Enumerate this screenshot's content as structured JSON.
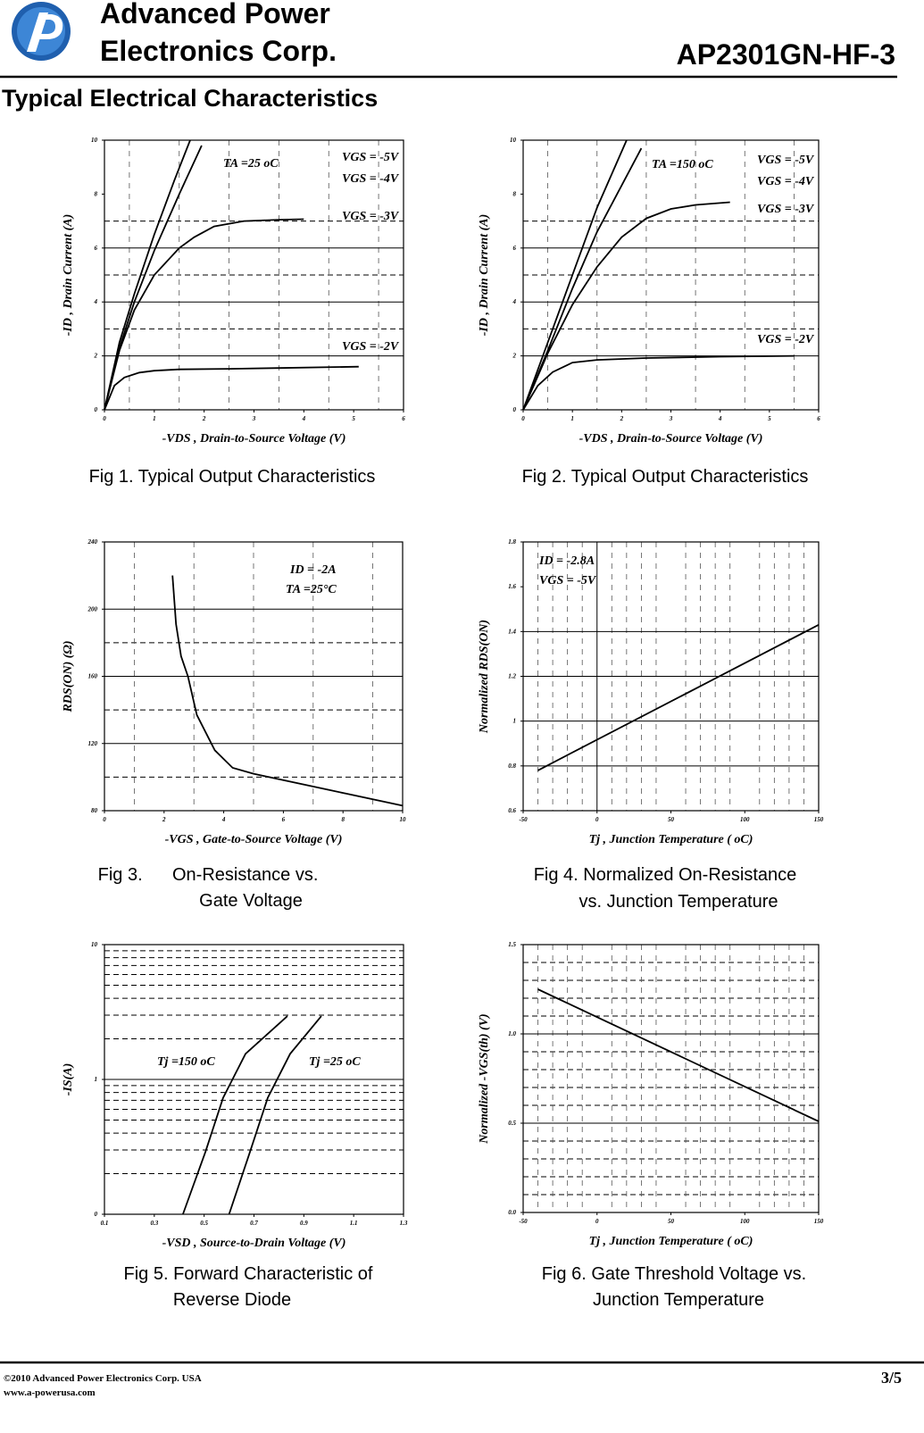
{
  "header": {
    "company": [
      "Advanced Power",
      "Electronics Corp."
    ],
    "part_number": "AP2301GN-HF-3"
  },
  "section_title": "Typical Electrical Characteristics",
  "chart_data": [
    {
      "type": "line",
      "xlabel": "-VDS , Drain-to-Source Voltage (V)",
      "ylabel": "-ID , Drain Current (A)",
      "annotations": [
        "TA =25 oC"
      ],
      "caption": [
        "Fig 1. Typical Output Characteristics"
      ],
      "xlim": [
        0,
        6
      ],
      "ylim": [
        0,
        10
      ],
      "xticks": [
        0,
        1,
        2,
        3,
        4,
        5,
        6
      ],
      "yticks": [
        0,
        2,
        4,
        6,
        8,
        10
      ],
      "grid_y_solid": [
        2,
        4,
        6
      ],
      "grid_y_dashed": [
        3,
        5,
        7
      ],
      "grid_x_dashed": [
        0.5,
        1.5,
        2.5,
        3.5,
        4.5,
        5.5
      ],
      "series": [
        {
          "name": "VGS = -5V",
          "color": "#000000",
          "x": [
            0,
            0.3,
            0.6,
            1.0,
            1.4,
            1.72
          ],
          "values": [
            0,
            2.5,
            4.3,
            6.5,
            8.5,
            10
          ]
        },
        {
          "name": "VGS = -4V",
          "color": "#000000",
          "x": [
            0,
            0.3,
            0.6,
            1.0,
            1.5,
            1.95
          ],
          "values": [
            0,
            2.3,
            4.0,
            5.9,
            8.0,
            9.8
          ]
        },
        {
          "name": "VGS = -3V",
          "color": "#000000",
          "x": [
            0,
            0.3,
            0.6,
            1.0,
            1.5,
            1.8,
            2.2,
            2.8,
            3.5,
            4.0
          ],
          "values": [
            0,
            2.2,
            3.7,
            5.0,
            6.0,
            6.4,
            6.8,
            7.0,
            7.05,
            7.07
          ]
        },
        {
          "name": "VGS = -2V",
          "color": "#000000",
          "x": [
            0,
            0.2,
            0.4,
            0.7,
            1.0,
            1.5,
            2.5,
            3.5,
            5.1
          ],
          "values": [
            0,
            0.9,
            1.2,
            1.38,
            1.45,
            1.5,
            1.52,
            1.55,
            1.6
          ]
        }
      ]
    },
    {
      "type": "line",
      "xlabel": "-VDS , Drain-to-Source Voltage (V)",
      "ylabel": "-ID , Drain Current (A)",
      "annotations": [
        "TA =150 oC"
      ],
      "caption": [
        "Fig 2. Typical Output Characteristics"
      ],
      "xlim": [
        0,
        6
      ],
      "ylim": [
        0,
        10
      ],
      "xticks": [
        0,
        1,
        2,
        3,
        4,
        5,
        6
      ],
      "yticks": [
        0,
        2,
        4,
        6,
        8,
        10
      ],
      "grid_y_solid": [
        2,
        4,
        6
      ],
      "grid_y_dashed": [
        3,
        5,
        7
      ],
      "grid_x_dashed": [
        0.5,
        1.5,
        2.5,
        3.5,
        4.5,
        5.5
      ],
      "series": [
        {
          "name": "VGS = -5V",
          "color": "#000000",
          "x": [
            0,
            0.5,
            1.0,
            1.5,
            2.1
          ],
          "values": [
            0,
            2.5,
            5,
            7.5,
            10
          ]
        },
        {
          "name": "VGS = -4V",
          "color": "#000000",
          "x": [
            0,
            0.5,
            1.0,
            1.5,
            2.4
          ],
          "values": [
            0,
            2.2,
            4.5,
            6.6,
            9.7
          ]
        },
        {
          "name": "VGS = -3V",
          "color": "#000000",
          "x": [
            0,
            0.5,
            1,
            1.5,
            2,
            2.5,
            3,
            3.5,
            4.2
          ],
          "values": [
            0,
            2.1,
            3.9,
            5.3,
            6.4,
            7.1,
            7.45,
            7.6,
            7.7
          ]
        },
        {
          "name": "VGS = -2V",
          "color": "#000000",
          "x": [
            0,
            0.3,
            0.6,
            1,
            1.5,
            2.5,
            4,
            5.5
          ],
          "values": [
            0,
            0.9,
            1.4,
            1.75,
            1.85,
            1.92,
            1.97,
            2.0
          ]
        }
      ]
    },
    {
      "type": "line",
      "xlabel": "-VGS , Gate-to-Source Voltage (V)",
      "ylabel": "RDS(ON) (Ω)",
      "annotations": [
        "ID = -2A",
        "TA =25°C"
      ],
      "caption": [
        "Fig 3.      On-Resistance vs.",
        "Gate Voltage"
      ],
      "xlim": [
        0,
        10
      ],
      "ylim": [
        80,
        240
      ],
      "xticks": [
        0,
        2,
        4,
        6,
        8,
        10
      ],
      "yticks": [
        80,
        120,
        160,
        200,
        240
      ],
      "grid_y_solid": [
        120,
        160,
        200
      ],
      "grid_y_dashed": [
        100,
        140,
        180
      ],
      "grid_x_dashed": [
        1,
        3,
        5,
        7,
        9
      ],
      "series": [
        {
          "color": "#000000",
          "x": [
            2.28,
            2.4,
            2.57,
            2.8,
            3.1,
            3.7,
            4.3,
            5.0,
            7.5,
            10
          ],
          "values": [
            220,
            191,
            172,
            160,
            137,
            116,
            105.5,
            102,
            92.5,
            83
          ]
        }
      ]
    },
    {
      "type": "line",
      "xlabel": "Tj , Junction Temperature ( oC)",
      "ylabel": "Normalized RDS(ON)",
      "annotations": [
        "ID = -2.8A",
        "VGS = -5V"
      ],
      "caption": [
        "Fig 4. Normalized On-Resistance",
        "vs. Junction Temperature"
      ],
      "xlim": [
        -50,
        150
      ],
      "ylim": [
        0.6,
        1.8
      ],
      "xticks": [
        -50,
        0,
        50,
        100,
        150
      ],
      "yticks": [
        0.6,
        0.8,
        1,
        1.2,
        1.4,
        1.6,
        1.8
      ],
      "grid_y_solid": [
        0.8,
        1,
        1.2,
        1.4
      ],
      "grid_x_solid": [
        0
      ],
      "grid_x_dashed": [
        -40,
        -30,
        -20,
        -10,
        10,
        20,
        30,
        40,
        60,
        70,
        80,
        90,
        110,
        120,
        130,
        140
      ],
      "series": [
        {
          "color": "#000000",
          "x": [
            -40,
            150
          ],
          "values": [
            0.78,
            1.43
          ]
        }
      ]
    },
    {
      "type": "line",
      "xlabel": "-VSD , Source-to-Drain Voltage (V)",
      "ylabel": "-IS(A)",
      "annotations": [],
      "caption": [
        "Fig 5. Forward Characteristic of",
        "Reverse Diode"
      ],
      "log_y": true,
      "xlim": [
        0.1,
        1.3
      ],
      "ylim": [
        0.1,
        10
      ],
      "xticks": [
        0.1,
        0.3,
        0.5,
        0.7,
        0.9,
        1.1,
        1.3
      ],
      "yticks": [
        {
          "value": 0.1,
          "label": "0"
        },
        1,
        10
      ],
      "grid_y_solid": [
        1
      ],
      "grid_y_dashed": [
        0.2,
        0.3,
        0.4,
        0.5,
        0.6,
        0.7,
        0.8,
        0.9,
        2,
        3,
        4,
        5,
        6,
        7,
        8,
        9
      ],
      "series": [
        {
          "name": "Tj =150 oC",
          "color": "#000000",
          "x": [
            0.415,
            0.505,
            0.576,
            0.666,
            0.834
          ],
          "values": [
            0.1,
            0.29,
            0.73,
            1.55,
            2.95
          ]
        },
        {
          "name": "Tj =25 oC",
          "color": "#000000",
          "x": [
            0.6,
            0.684,
            0.755,
            0.845,
            0.97
          ],
          "values": [
            0.1,
            0.29,
            0.73,
            1.55,
            2.95
          ]
        }
      ]
    },
    {
      "type": "line",
      "xlabel": "Tj , Junction Temperature ( oC)",
      "ylabel": "Normalized -VGS(th) (V)",
      "annotations": [],
      "caption": [
        "Fig 6. Gate Threshold Voltage vs.",
        "Junction Temperature"
      ],
      "xlim": [
        -50,
        150
      ],
      "ylim": [
        0,
        1.5
      ],
      "xticks": [
        -50,
        0,
        50,
        100,
        150
      ],
      "yticks": [
        {
          "value": 0,
          "label": "0.0"
        },
        {
          "value": 0.5,
          "label": "0.5"
        },
        {
          "value": 1,
          "label": "1.0"
        },
        {
          "value": 1.5,
          "label": "1.5"
        }
      ],
      "grid_y_solid": [
        0.5,
        1
      ],
      "grid_y_dashed": [
        0.1,
        0.2,
        0.3,
        0.4,
        0.6,
        0.7,
        0.8,
        0.9,
        1.1,
        1.2,
        1.3,
        1.4
      ],
      "grid_x_dashed": [
        -40,
        -30,
        -20,
        -10,
        10,
        20,
        30,
        40,
        60,
        70,
        80,
        90,
        110,
        120,
        130,
        140
      ],
      "series": [
        {
          "color": "#000000",
          "x": [
            -40,
            150
          ],
          "values": [
            1.25,
            0.51
          ]
        }
      ]
    }
  ],
  "footer": {
    "copyright": "©2010 Advanced Power Electronics Corp. USA",
    "website": "www.a-powerusa.com",
    "page": "3/5"
  }
}
